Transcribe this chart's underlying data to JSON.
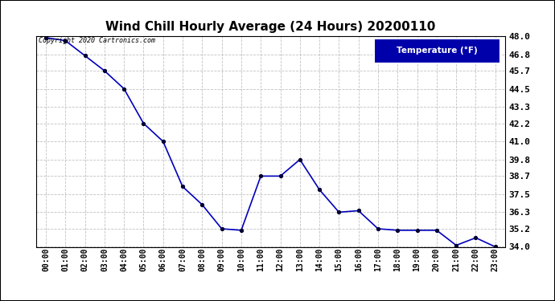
{
  "title": "Wind Chill Hourly Average (24 Hours) 20200110",
  "hours": [
    "00:00",
    "01:00",
    "02:00",
    "03:00",
    "04:00",
    "05:00",
    "06:00",
    "07:00",
    "08:00",
    "09:00",
    "10:00",
    "11:00",
    "12:00",
    "13:00",
    "14:00",
    "15:00",
    "16:00",
    "17:00",
    "18:00",
    "19:00",
    "20:00",
    "21:00",
    "22:00",
    "23:00"
  ],
  "values": [
    47.9,
    47.7,
    46.7,
    45.7,
    44.5,
    42.2,
    41.0,
    38.0,
    36.8,
    35.2,
    35.1,
    38.7,
    38.7,
    39.8,
    37.8,
    36.3,
    36.4,
    35.2,
    35.1,
    35.1,
    35.1,
    34.1,
    34.6,
    34.0
  ],
  "ylim": [
    34.0,
    48.0
  ],
  "yticks": [
    34.0,
    35.2,
    36.3,
    37.5,
    38.7,
    39.8,
    41.0,
    42.2,
    43.3,
    44.5,
    45.7,
    46.8,
    48.0
  ],
  "line_color": "#0000BB",
  "marker_color": "#000033",
  "bg_color": "#ffffff",
  "plot_bg_color": "#ffffff",
  "grid_color": "#bbbbbb",
  "legend_text": "Temperature (°F)",
  "legend_bg": "#0000AA",
  "legend_text_color": "#ffffff",
  "copyright_text": "Copyright 2020 Cartronics.com",
  "copyright_color": "#000000",
  "title_color": "#000000",
  "axis_label_color": "#000000",
  "border_color": "#000000"
}
